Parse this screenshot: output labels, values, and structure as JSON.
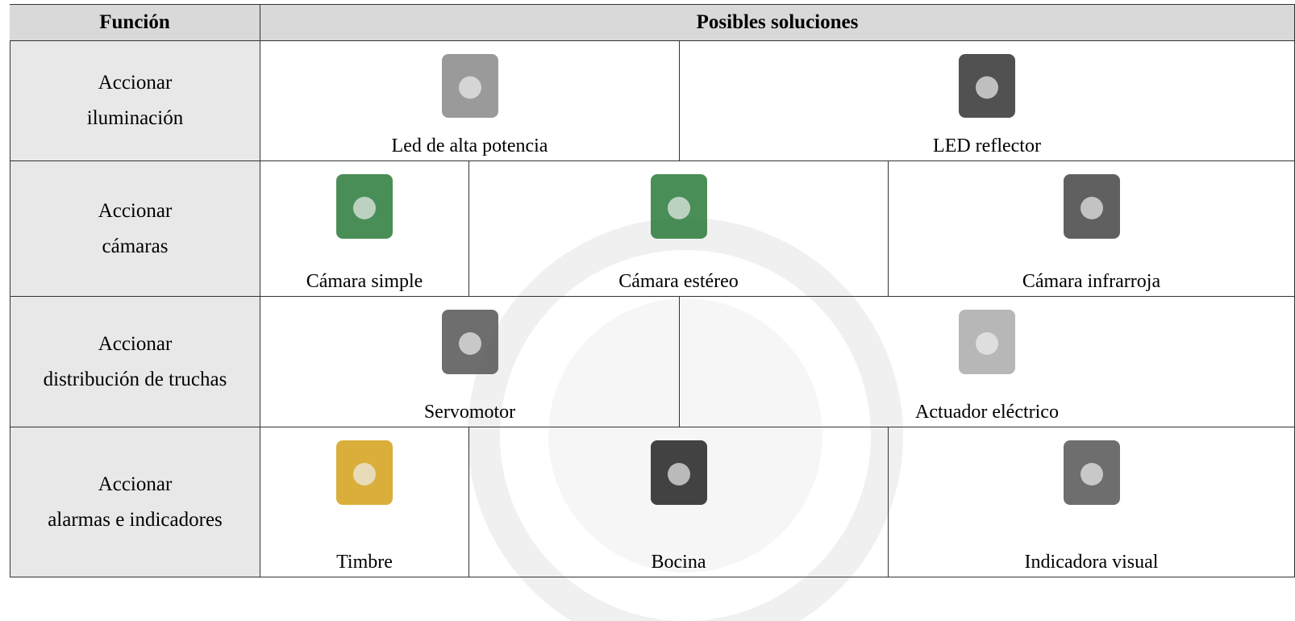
{
  "table": {
    "header": [
      "Función",
      "Posibles soluciones"
    ],
    "rows": [
      {
        "function": [
          "Accionar",
          "iluminación"
        ],
        "solutions": [
          "Led de alta potencia",
          "LED reflector"
        ]
      },
      {
        "function": [
          "Accionar",
          "cámaras"
        ],
        "solutions": [
          "Cámara simple",
          "Cámara estéreo",
          "Cámara infrarroja"
        ]
      },
      {
        "function": [
          "Accionar",
          "distribución de truchas"
        ],
        "solutions": [
          "Servomotor",
          "Actuador eléctrico"
        ]
      },
      {
        "function": [
          "Accionar",
          "alarmas e indicadores"
        ],
        "solutions": [
          "Timbre",
          "Bocina",
          "Indicadora visual"
        ]
      }
    ]
  }
}
